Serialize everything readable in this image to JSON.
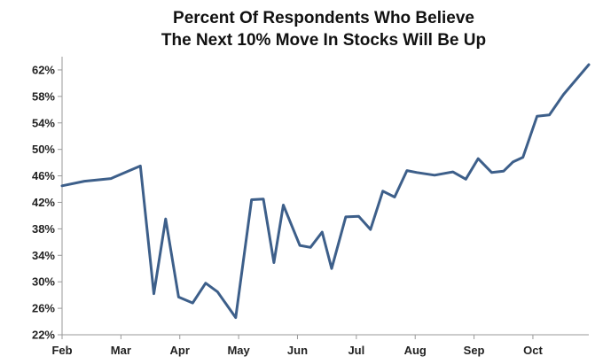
{
  "chart_data": {
    "type": "line",
    "title": "Percent Of Respondents Who Believe",
    "subtitle": "The Next 10% Move In Stocks Will Be Up",
    "xlabel": "",
    "ylabel": "",
    "x_ticks": [
      "Feb",
      "Mar",
      "Apr",
      "May",
      "Jun",
      "Jul",
      "Aug",
      "Sep",
      "Oct"
    ],
    "y_ticks": [
      "22%",
      "26%",
      "30%",
      "34%",
      "38%",
      "42%",
      "46%",
      "50%",
      "54%",
      "58%",
      "62%"
    ],
    "ylim": [
      22,
      64
    ],
    "xlim": [
      0,
      8.95
    ],
    "grid": false,
    "legend": "none",
    "line_color": "#3d5f8a",
    "series": [
      {
        "x": [
          0,
          0.38,
          0.83,
          1.33,
          1.56,
          1.76,
          1.98,
          2.22,
          2.44,
          2.64,
          2.95,
          3.22,
          3.42,
          3.6,
          3.76,
          4.04,
          4.22,
          4.42,
          4.58,
          4.82,
          5.04,
          5.24,
          5.45,
          5.65,
          5.86,
          6.03,
          6.33,
          6.64,
          6.86,
          7.07,
          7.3,
          7.5,
          7.66,
          7.83,
          8.07,
          8.28,
          8.52,
          8.95
        ],
        "values": [
          44.5,
          45.2,
          45.6,
          47.5,
          28.2,
          39.5,
          27.7,
          26.8,
          29.8,
          28.5,
          24.6,
          42.4,
          42.5,
          32.9,
          41.6,
          35.5,
          35.2,
          37.5,
          32.0,
          39.8,
          39.9,
          37.9,
          43.7,
          42.8,
          46.8,
          46.5,
          46.1,
          46.6,
          45.5,
          48.6,
          46.5,
          46.7,
          48.1,
          48.8,
          55.0,
          55.2,
          58.3,
          62.8
        ]
      }
    ]
  }
}
